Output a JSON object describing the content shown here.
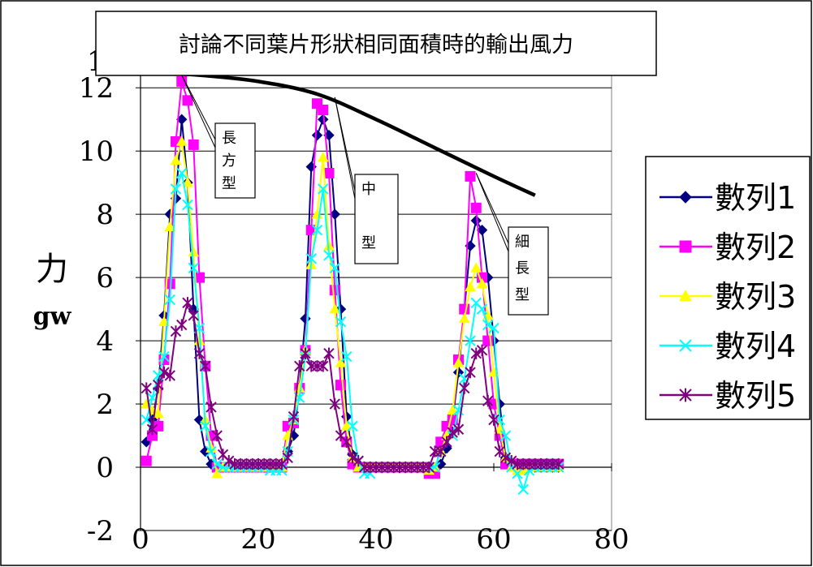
{
  "chart_data": {
    "type": "line",
    "title": "討論不同葉片形狀相同面積時的輸出風力",
    "ylabel": "力",
    "yunit": "gw",
    "xlabel": "",
    "xlim": [
      0,
      80
    ],
    "ylim": [
      -2,
      12
    ],
    "x_ticks": [
      "0",
      "20",
      "40",
      "60",
      "80"
    ],
    "y_ticks": [
      "-2",
      "0",
      "2",
      "4",
      "6",
      "8",
      "10",
      "12"
    ],
    "y_top_tick_partial": "1",
    "grid": "horizontal",
    "legend_position": "right",
    "series": [
      {
        "name": "數列1",
        "color": "#000080",
        "marker": "diamond",
        "x": [
          1,
          2,
          3,
          4,
          5,
          6,
          7,
          8,
          9,
          10,
          11,
          12,
          13,
          14,
          15,
          16,
          17,
          18,
          19,
          20,
          21,
          22,
          23,
          24,
          25,
          26,
          27,
          28,
          29,
          30,
          31,
          32,
          33,
          34,
          35,
          36,
          37,
          38,
          39,
          40,
          41,
          42,
          43,
          44,
          45,
          46,
          47,
          48,
          49,
          50,
          51,
          52,
          53,
          54,
          55,
          56,
          57,
          58,
          59,
          60,
          61,
          62,
          63,
          64,
          65,
          66,
          67,
          68,
          69,
          70,
          71
        ],
        "y": [
          0.8,
          1.5,
          2.5,
          4.8,
          8,
          8.5,
          11,
          9,
          5,
          1.5,
          0.5,
          0.1,
          0,
          0,
          0,
          0,
          0,
          0,
          0,
          0,
          0,
          0,
          0,
          0,
          0.5,
          1,
          2.5,
          4.7,
          9.5,
          10.5,
          11,
          10.5,
          8,
          5,
          1.6,
          0.4,
          0.1,
          0,
          0,
          0,
          0,
          0,
          0,
          0,
          0,
          0,
          0,
          0,
          0,
          0,
          0.1,
          0.6,
          1.5,
          3,
          5,
          7,
          7.8,
          7.5,
          6,
          4,
          2,
          0.3,
          0.1,
          0,
          0,
          0,
          0,
          0,
          0,
          0,
          0
        ],
        "visible_from": 0
      },
      {
        "name": "數列2",
        "color": "#FF00FF",
        "marker": "square",
        "x": [
          1,
          2,
          3,
          4,
          5,
          6,
          7,
          8,
          9,
          10,
          11,
          12,
          13,
          14,
          15,
          16,
          17,
          18,
          19,
          20,
          21,
          22,
          23,
          24,
          25,
          26,
          27,
          28,
          29,
          30,
          31,
          32,
          33,
          34,
          35,
          36,
          37,
          38,
          39,
          40,
          41,
          42,
          43,
          44,
          45,
          46,
          47,
          48,
          49,
          50,
          51,
          52,
          53,
          54,
          55,
          56,
          57,
          58,
          59,
          60,
          61,
          62,
          63,
          64,
          65,
          66,
          67,
          68,
          69,
          70,
          71
        ],
        "y": [
          0.2,
          1,
          1.3,
          3.4,
          5.8,
          10.3,
          12.2,
          11.6,
          10.2,
          6,
          3.2,
          1,
          0,
          0,
          0,
          0,
          0,
          0,
          0,
          0,
          0,
          0,
          0,
          0,
          1.3,
          1.4,
          2.5,
          3.7,
          7.5,
          11.5,
          11.3,
          9.3,
          5.6,
          2.6,
          0.8,
          0.1,
          0,
          0,
          0,
          0,
          0,
          0,
          0,
          0,
          0,
          0,
          0,
          0,
          -0.2,
          -0.2,
          0.8,
          1.3,
          1.5,
          3.4,
          5,
          9.2,
          8.2,
          6,
          4,
          2,
          1,
          0.1,
          0.1,
          0.1,
          0.1,
          0.1,
          0.1,
          0.1,
          0.1,
          0.1,
          0.1
        ]
      },
      {
        "name": "數列3",
        "color": "#FFFF00",
        "marker": "triangle",
        "x": [
          1,
          2,
          3,
          4,
          5,
          6,
          7,
          8,
          9,
          10,
          11,
          12,
          13,
          14,
          15,
          16,
          17,
          18,
          19,
          20,
          21,
          22,
          23,
          24,
          25,
          26,
          27,
          28,
          29,
          30,
          31,
          32,
          33,
          34,
          35,
          36,
          37,
          38,
          39,
          40,
          41,
          42,
          43,
          44,
          45,
          46,
          47,
          48,
          49,
          50,
          51,
          52,
          53,
          54,
          55,
          56,
          57,
          58,
          59,
          60,
          61,
          62,
          63,
          64,
          65,
          66,
          67,
          68,
          69,
          70,
          71
        ],
        "y": [
          2,
          1.8,
          1.7,
          4.6,
          7.6,
          9.7,
          10.3,
          9,
          6.8,
          4,
          1.5,
          0.6,
          -0.2,
          0,
          0,
          0,
          0,
          0,
          0,
          0,
          0,
          0,
          0,
          0,
          1,
          1.5,
          2.5,
          3.7,
          6.4,
          8,
          9.8,
          7,
          5,
          3.3,
          1.3,
          0.3,
          0,
          0,
          0,
          0,
          0,
          0,
          0,
          0,
          0,
          0,
          0,
          0,
          -0.1,
          0,
          0.5,
          1,
          1.8,
          3.3,
          4.7,
          5.7,
          6.3,
          5.8,
          4.8,
          3,
          1.2,
          0.3,
          0,
          -0.1,
          -0.1,
          0,
          0,
          0,
          0,
          0,
          0
        ]
      },
      {
        "name": "數列4",
        "color": "#00FFFF",
        "marker": "x",
        "x": [
          1,
          2,
          3,
          4,
          5,
          6,
          7,
          8,
          9,
          10,
          11,
          12,
          13,
          14,
          15,
          16,
          17,
          18,
          19,
          20,
          21,
          22,
          23,
          24,
          25,
          26,
          27,
          28,
          29,
          30,
          31,
          32,
          33,
          34,
          35,
          36,
          37,
          38,
          39,
          40,
          41,
          42,
          43,
          44,
          45,
          46,
          47,
          48,
          49,
          50,
          51,
          52,
          53,
          54,
          55,
          56,
          57,
          58,
          59,
          60,
          61,
          62,
          63,
          64,
          65,
          66,
          67,
          68,
          69,
          70,
          71
        ],
        "y": [
          1.5,
          2.2,
          2.9,
          3.5,
          5.3,
          8.8,
          9.3,
          8.3,
          6.3,
          4.4,
          1.3,
          0.5,
          0.1,
          0,
          0,
          0,
          0,
          0,
          0,
          0,
          0,
          -0.1,
          -0.1,
          -0.1,
          0.5,
          1.5,
          2.2,
          3.5,
          6.6,
          7.5,
          8.8,
          6.7,
          6.3,
          4.6,
          3.5,
          1.3,
          0.2,
          -0.2,
          -0.2,
          0,
          0,
          0,
          0,
          0,
          0,
          0,
          0,
          0,
          0,
          0,
          0.5,
          0.8,
          1,
          1.8,
          2.8,
          4,
          5.2,
          5,
          4.5,
          4.4,
          1.5,
          1,
          0,
          -0.2,
          -0.7,
          -0.1,
          0,
          0,
          0,
          0,
          0
        ]
      },
      {
        "name": "數列5",
        "color": "#800080",
        "marker": "star",
        "x": [
          1,
          2,
          3,
          4,
          5,
          6,
          7,
          8,
          9,
          10,
          11,
          12,
          13,
          14,
          15,
          16,
          17,
          18,
          19,
          20,
          21,
          22,
          23,
          24,
          25,
          26,
          27,
          28,
          29,
          30,
          31,
          32,
          33,
          34,
          35,
          36,
          37,
          38,
          39,
          40,
          41,
          42,
          43,
          44,
          45,
          46,
          47,
          48,
          49,
          50,
          51,
          52,
          53,
          54,
          55,
          56,
          57,
          58,
          59,
          60,
          61,
          62,
          63,
          64,
          65,
          66,
          67,
          68,
          69,
          70,
          71
        ],
        "y": [
          2.5,
          1.2,
          2.6,
          3,
          2.9,
          4.3,
          4.5,
          5.2,
          4.8,
          3.6,
          3.2,
          1.9,
          1,
          0.4,
          0.2,
          0.1,
          0.1,
          0.1,
          0.1,
          0.1,
          0.1,
          0.1,
          0.1,
          0.1,
          0.3,
          1.6,
          3.2,
          3.6,
          3.2,
          3.2,
          3.2,
          3.6,
          2,
          1,
          0.8,
          0.3,
          0.2,
          0,
          0,
          0,
          0,
          0,
          0,
          0,
          0,
          0,
          0,
          0,
          0,
          0.5,
          0.5,
          0.8,
          1.1,
          1.2,
          2.5,
          3,
          3.6,
          3.7,
          2.1,
          1.5,
          0.5,
          0.3,
          0.2,
          0.1,
          0.1,
          0.1,
          0.1,
          0.1,
          0.1,
          0.1,
          0.1
        ]
      }
    ],
    "trend": {
      "x": [
        0,
        10,
        20,
        30,
        40,
        50,
        60,
        67
      ],
      "y": [
        12.5,
        12.4,
        12.2,
        11.8,
        11,
        10.1,
        9.2,
        8.6
      ]
    },
    "annotations": [
      {
        "lines": [
          "長",
          "方",
          "型"
        ],
        "target": [
          7,
          12.4
        ]
      },
      {
        "lines": [
          "中",
          "",
          "型"
        ],
        "target": [
          33,
          11.7
        ]
      },
      {
        "lines": [
          "細",
          "長",
          "型"
        ],
        "target": [
          57,
          9.3
        ]
      }
    ]
  }
}
